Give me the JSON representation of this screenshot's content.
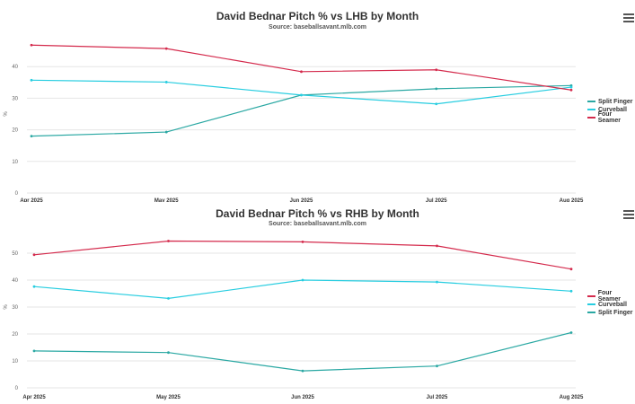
{
  "colors": {
    "four_seamer": "#d42a4c",
    "curveball": "#27cde0",
    "split_finger": "#2aa8a3"
  },
  "menu_icon": "hamburger-menu-icon",
  "chart_data": [
    {
      "type": "line",
      "title": "David Bednar Pitch % vs LHB by Month",
      "subtitle": "Source: baseballsavant.mlb.com",
      "ylabel": "%",
      "categories": [
        "Apr 2025",
        "May 2025",
        "Jun 2025",
        "Jul 2025",
        "Aug 2025"
      ],
      "ylim": [
        0,
        50
      ],
      "yticks": [
        0,
        10,
        20,
        30,
        40
      ],
      "legend_position": "right",
      "series": [
        {
          "name": "Split Finger",
          "color_key": "split_finger",
          "values": [
            18,
            19.3,
            31,
            33,
            34
          ]
        },
        {
          "name": "Curveball",
          "color_key": "curveball",
          "values": [
            35.7,
            35.1,
            31,
            28.2,
            33.5
          ]
        },
        {
          "name": "Four Seamer",
          "color_key": "four_seamer",
          "values": [
            46.8,
            45.7,
            38.4,
            39,
            32.6
          ]
        }
      ]
    },
    {
      "type": "line",
      "title": "David Bednar Pitch % vs RHB by Month",
      "subtitle": "Source: baseballsavant.mlb.com",
      "ylabel": "%",
      "categories": [
        "Apr 2025",
        "May 2025",
        "Jun 2025",
        "Jul 2025",
        "Aug 2025"
      ],
      "ylim": [
        0,
        60
      ],
      "yticks": [
        0,
        10,
        20,
        30,
        40,
        50
      ],
      "legend_position": "right",
      "series": [
        {
          "name": "Four Seamer",
          "color_key": "four_seamer",
          "values": [
            49.4,
            54.5,
            54.2,
            52.7,
            44.1
          ]
        },
        {
          "name": "Curveball",
          "color_key": "curveball",
          "values": [
            37.6,
            33.2,
            40,
            39.3,
            35.9
          ]
        },
        {
          "name": "Split Finger",
          "color_key": "split_finger",
          "values": [
            13.7,
            13.1,
            6.3,
            8.1,
            20.5
          ]
        }
      ]
    }
  ]
}
